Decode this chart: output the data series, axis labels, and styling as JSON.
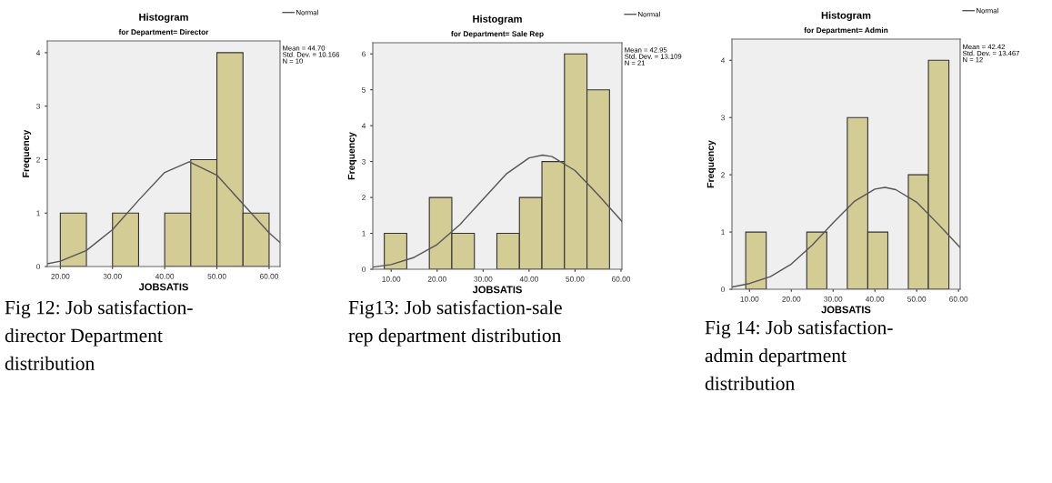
{
  "chart_data": [
    {
      "type": "histogram",
      "title": "Histogram",
      "subtitle": "for Department= Director",
      "xlabel": "JOBSATIS",
      "ylabel": "Frequency",
      "bins": [
        20,
        25,
        30,
        35,
        40,
        45,
        50,
        55,
        60
      ],
      "values": [
        1,
        0,
        1,
        0,
        1,
        2,
        4,
        1
      ],
      "color": "#d3cc95",
      "xlim": [
        17.5,
        62.1
      ],
      "xticks": [
        {
          "value": 20,
          "label": "20.00"
        },
        {
          "value": 30,
          "label": "30.00"
        },
        {
          "value": 40,
          "label": "40.00"
        },
        {
          "value": 50,
          "label": "50.00"
        },
        {
          "value": 60,
          "label": "60.00"
        }
      ],
      "ylim": [
        0,
        4.22
      ],
      "yticks": [
        0,
        1,
        2,
        3,
        4
      ],
      "grid": false,
      "legend": "top right",
      "series": [
        {
          "type": "line",
          "name": "Normal",
          "color": "#555555",
          "x": [
            17.5,
            20,
            25,
            30,
            35,
            40,
            44.7,
            50,
            55,
            60,
            62.1
          ],
          "values": [
            0.05,
            0.1,
            0.3,
            0.69,
            1.24,
            1.76,
            1.96,
            1.71,
            1.17,
            0.63,
            0.45
          ]
        }
      ],
      "annotations": [
        "Mean = 44.70\nStd. Dev. = 10.166\nN = 10",
        "Fig 12: Job satisfaction-\ndirector Department\ndistribution"
      ]
    },
    {
      "type": "histogram",
      "title": "Histogram",
      "subtitle": "for Department= Sale Rep",
      "xlabel": "JOBSATIS",
      "ylabel": "Frequency",
      "bins": [
        8.5,
        13.4,
        18.3,
        23.2,
        28.1,
        33.0,
        37.9,
        42.8,
        47.7,
        52.6,
        57.5
      ],
      "values": [
        1,
        0,
        2,
        1,
        0,
        1,
        2,
        3,
        6,
        5
      ],
      "color": "#d3cc95",
      "xlim": [
        6,
        60.2
      ],
      "xticks": [
        {
          "value": 10,
          "label": "10.00"
        },
        {
          "value": 20,
          "label": "20.00"
        },
        {
          "value": 30,
          "label": "30.00"
        },
        {
          "value": 40,
          "label": "40.00"
        },
        {
          "value": 50,
          "label": "50.00"
        },
        {
          "value": 60,
          "label": "60.00"
        }
      ],
      "ylim": [
        0,
        6.31
      ],
      "yticks": [
        0,
        1,
        2,
        3,
        4,
        5,
        6
      ],
      "grid": false,
      "legend": "top right",
      "series": [
        {
          "type": "line",
          "name": "Normal",
          "color": "#555555",
          "x": [
            6,
            10,
            15,
            20,
            25,
            30,
            35,
            40,
            42.95,
            45,
            50,
            55,
            60,
            60.2
          ],
          "values": [
            0.06,
            0.13,
            0.33,
            0.69,
            1.25,
            1.95,
            2.65,
            3.1,
            3.18,
            3.14,
            2.75,
            2.08,
            1.36,
            1.33
          ]
        }
      ],
      "annotations": [
        "Mean = 42.95\nStd. Dev. = 13.109\nN = 21",
        "Fig13: Job satisfaction-sale\nrep department distribution"
      ]
    },
    {
      "type": "histogram",
      "title": "Histogram",
      "subtitle": "for Department= Admin",
      "xlabel": "JOBSATIS",
      "ylabel": "Frequency",
      "bins": [
        9.1,
        14.0,
        18.8,
        23.7,
        28.5,
        33.4,
        38.3,
        43.1,
        48.0,
        52.8,
        57.7
      ],
      "values": [
        1,
        0,
        0,
        1,
        0,
        3,
        1,
        0,
        2,
        4
      ],
      "color": "#d3cc95",
      "xlim": [
        5.8,
        60.4
      ],
      "xticks": [
        {
          "value": 10,
          "label": "10.00"
        },
        {
          "value": 20,
          "label": "20.00"
        },
        {
          "value": 30,
          "label": "30.00"
        },
        {
          "value": 40,
          "label": "40.00"
        },
        {
          "value": 50,
          "label": "50.00"
        },
        {
          "value": 60,
          "label": "60.00"
        }
      ],
      "ylim": [
        0,
        4.37
      ],
      "yticks": [
        0,
        1,
        2,
        3,
        4
      ],
      "grid": false,
      "legend": "top right",
      "series": [
        {
          "type": "line",
          "name": "Normal",
          "color": "#555555",
          "x": [
            5.8,
            10,
            15,
            20,
            25,
            30,
            35,
            40,
            42.42,
            45,
            50,
            55,
            60,
            60.4
          ],
          "values": [
            0.04,
            0.1,
            0.22,
            0.44,
            0.77,
            1.16,
            1.53,
            1.75,
            1.78,
            1.74,
            1.52,
            1.15,
            0.76,
            0.73
          ]
        }
      ],
      "annotations": [
        "Mean = 42.42\nStd. Dev. = 13.467\nN = 12",
        "Fig 14: Job satisfaction-\nadmin department\ndistribution"
      ]
    }
  ]
}
